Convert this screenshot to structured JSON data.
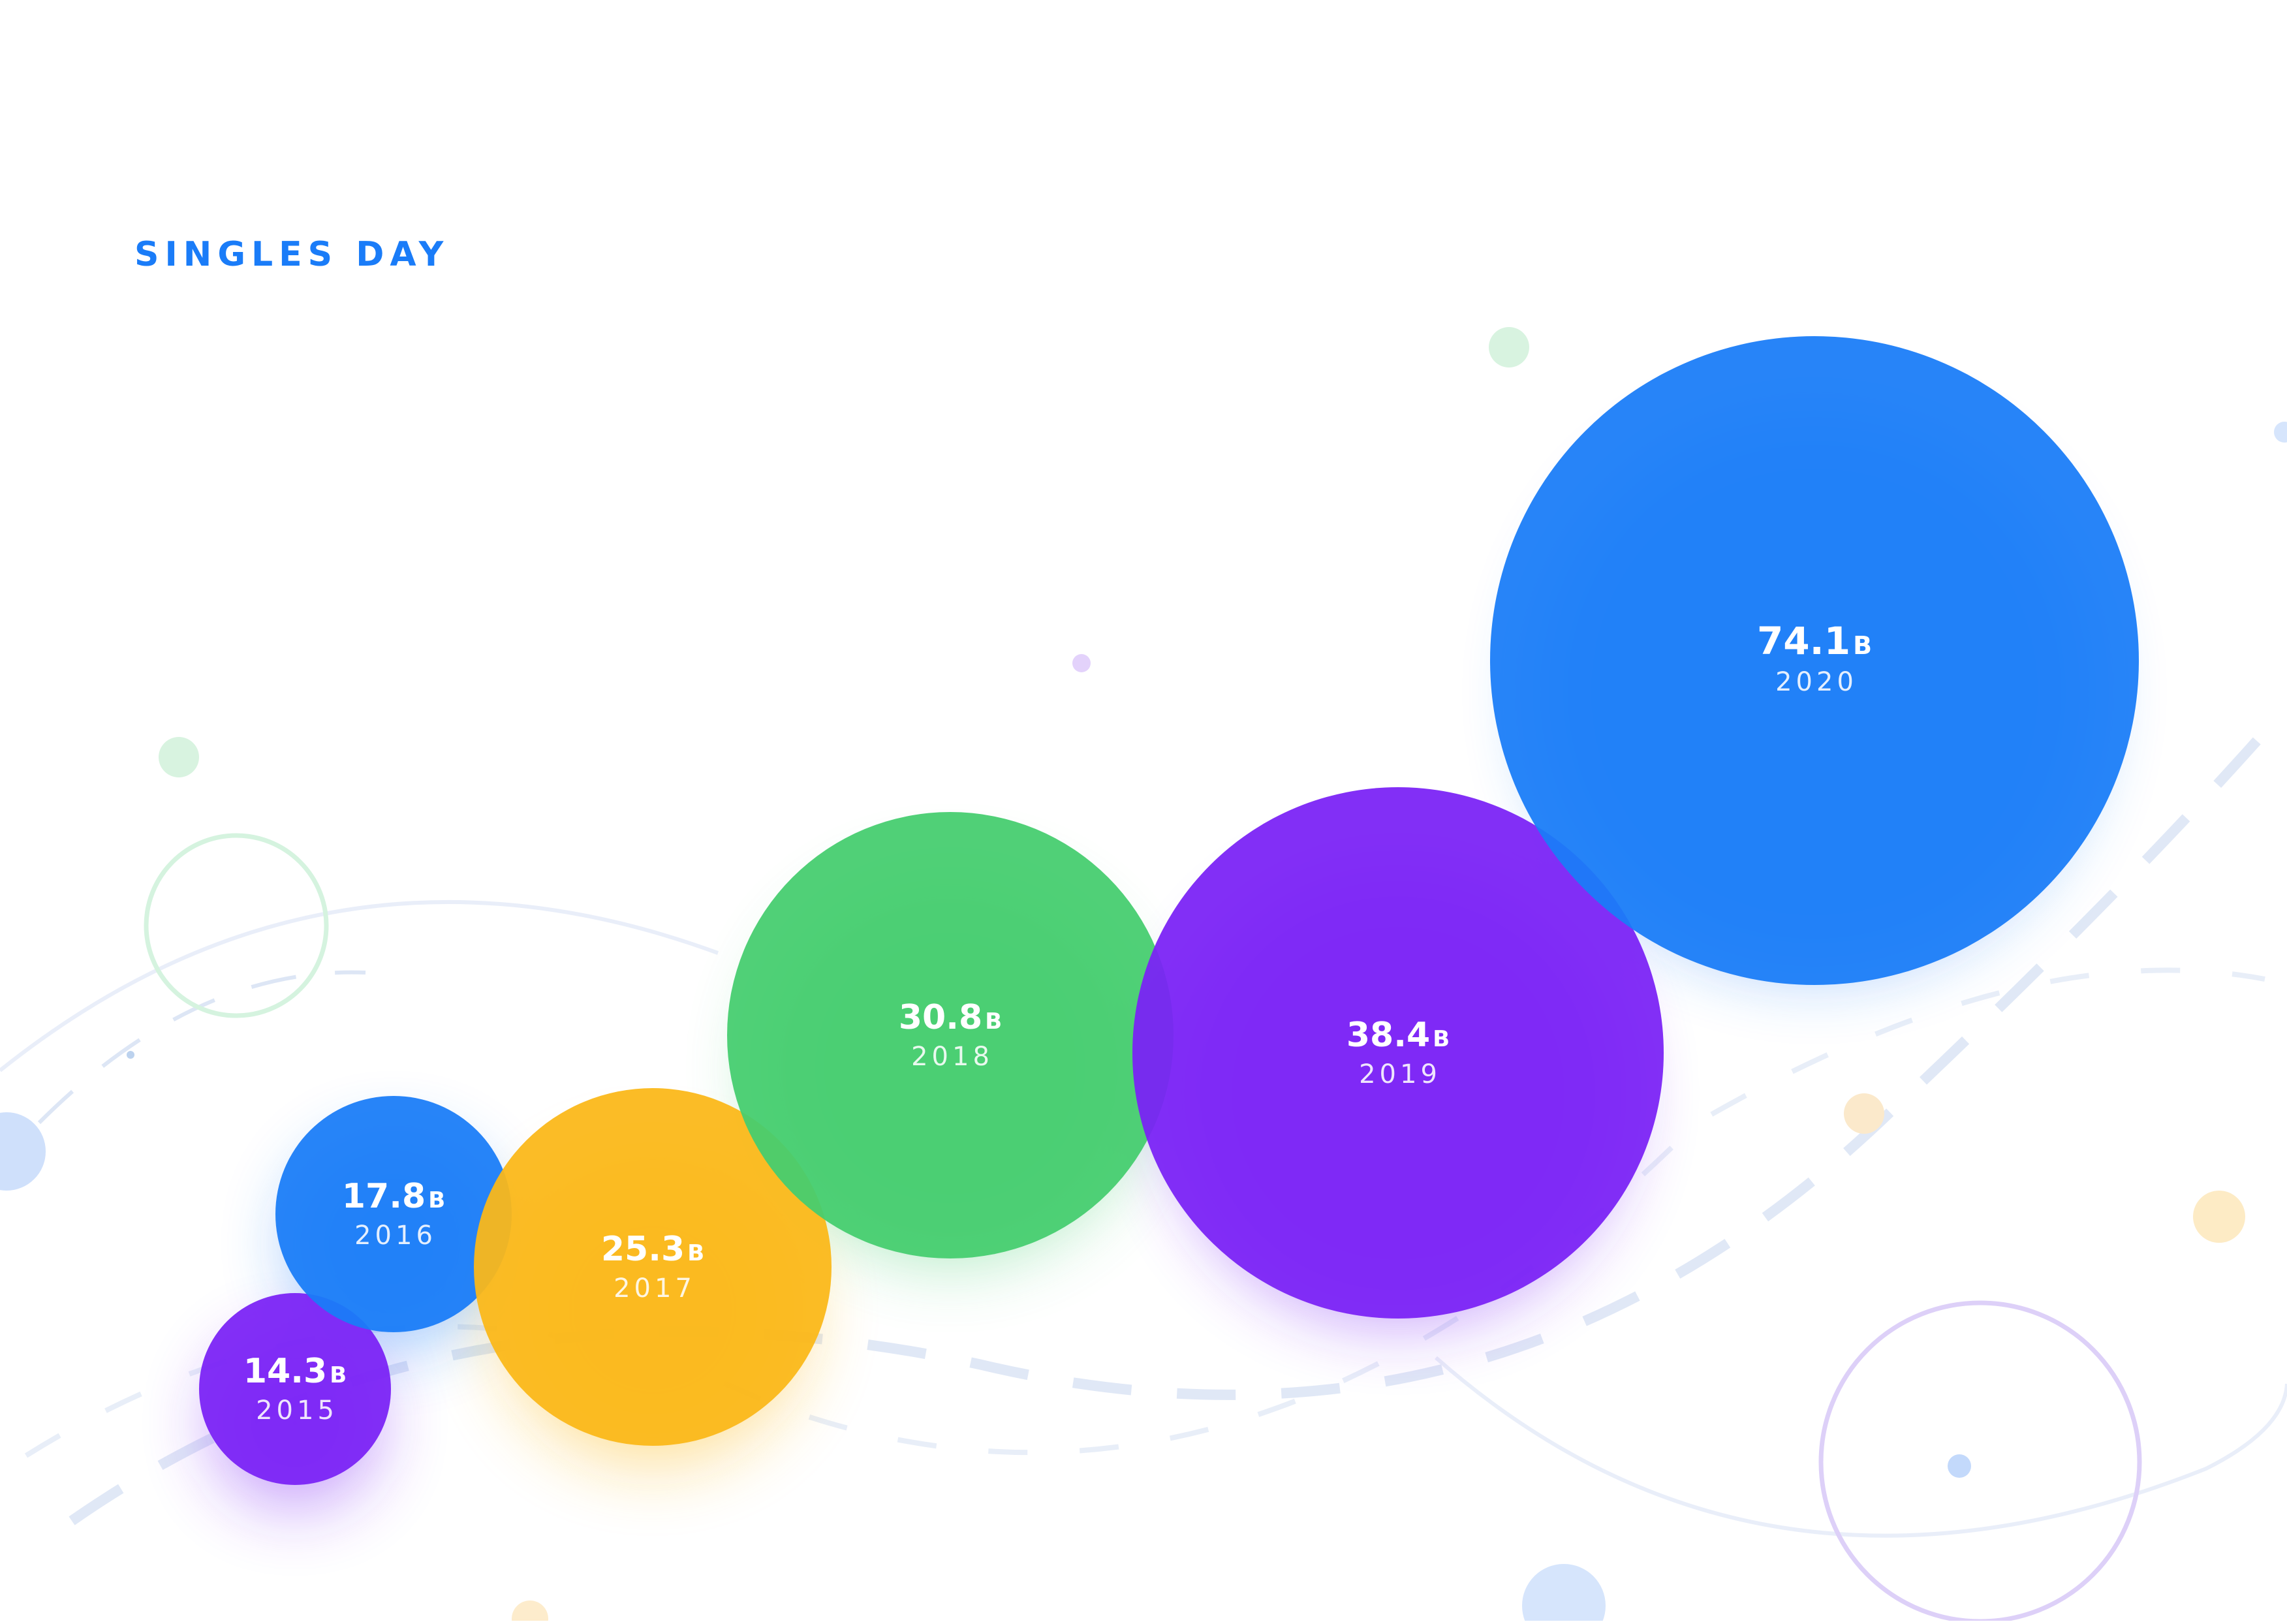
{
  "title": "SINGLES DAY",
  "colors": {
    "blue": "#1a7cf8",
    "purple": "#7a22f5",
    "yellow": "#fbb818",
    "green": "#45cd6e",
    "title": "#1a7cf8"
  },
  "chart_data": {
    "type": "bubble",
    "title": "SINGLES DAY",
    "unit": "B",
    "series": [
      {
        "year": "2015",
        "value": 14.3,
        "label": "14.3",
        "color": "purple"
      },
      {
        "year": "2016",
        "value": 17.8,
        "label": "17.8",
        "color": "blue"
      },
      {
        "year": "2017",
        "value": 25.3,
        "label": "25.3",
        "color": "yellow"
      },
      {
        "year": "2018",
        "value": 30.8,
        "label": "30.8",
        "color": "green"
      },
      {
        "year": "2019",
        "value": 38.4,
        "label": "38.4",
        "color": "purple"
      },
      {
        "year": "2020",
        "value": 74.1,
        "label": "74.1",
        "color": "blue"
      }
    ],
    "legend": "none",
    "grid": false
  }
}
